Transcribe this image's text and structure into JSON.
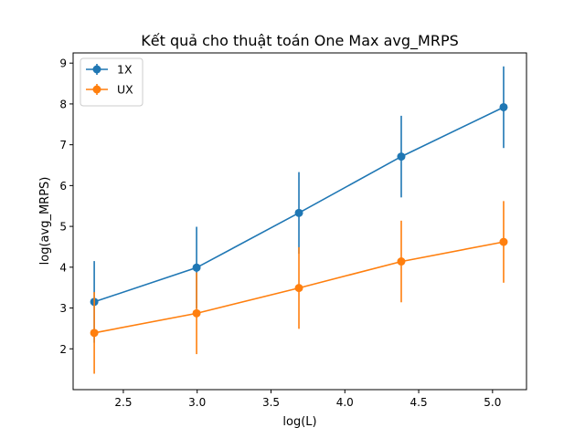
{
  "chart_data": {
    "type": "line",
    "title": "Kết quả cho thuật toán One Max avg_MRPS",
    "xlabel": "log(L)",
    "ylabel": "log(avg_MRPS)",
    "xlim": [
      2.16,
      5.23
    ],
    "ylim": [
      1.0,
      9.25
    ],
    "xticks": [
      2.5,
      3.0,
      3.5,
      4.0,
      4.5,
      5.0
    ],
    "xtick_labels": [
      "2.5",
      "3.0",
      "3.5",
      "4.0",
      "4.5",
      "5.0"
    ],
    "yticks": [
      2,
      3,
      4,
      5,
      6,
      7,
      8,
      9
    ],
    "ytick_labels": [
      "2",
      "3",
      "4",
      "5",
      "6",
      "7",
      "8",
      "9"
    ],
    "grid": false,
    "legend_position": "top-left",
    "x": [
      2.303,
      2.996,
      3.689,
      4.382,
      5.075
    ],
    "series": [
      {
        "name": "1X",
        "color": "#1f77b4",
        "marker": "circle",
        "values": [
          3.15,
          3.99,
          5.33,
          6.71,
          7.92
        ],
        "err_low": [
          2.15,
          2.99,
          4.33,
          5.71,
          6.92
        ],
        "err_high": [
          4.15,
          4.99,
          6.33,
          7.71,
          8.92
        ]
      },
      {
        "name": "UX",
        "color": "#ff7f0e",
        "marker": "circle",
        "values": [
          2.39,
          2.87,
          3.49,
          4.14,
          4.62
        ],
        "err_low": [
          1.39,
          1.87,
          2.49,
          3.14,
          3.62
        ],
        "err_high": [
          3.39,
          3.87,
          4.49,
          5.14,
          5.62
        ]
      }
    ]
  }
}
